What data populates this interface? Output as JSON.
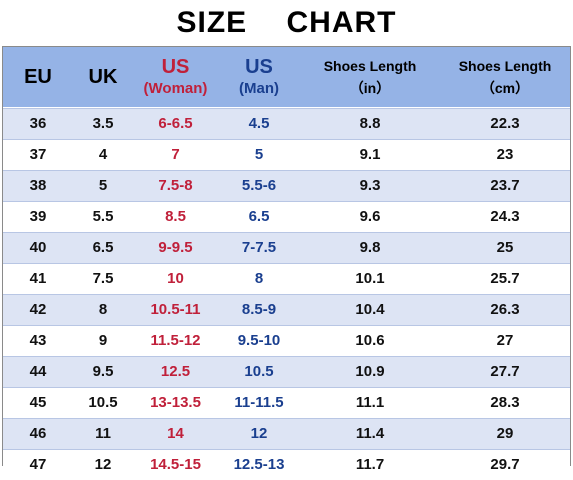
{
  "title": "SIZE CHART",
  "colors": {
    "header_bg": "#95b3e6",
    "stripe": "#dde4f4",
    "woman": "#c0203a",
    "man": "#1a3f8f"
  },
  "headers": {
    "eu": "EU",
    "uk": "UK",
    "us_woman": "US",
    "us_woman_sub": "(Woman)",
    "us_man": "US",
    "us_man_sub": "(Man)",
    "length_in": "Shoes Length",
    "length_in_unit": "（in）",
    "length_cm": "Shoes Length",
    "length_cm_unit": "（cm）"
  },
  "rows": [
    {
      "eu": "36",
      "uk": "3.5",
      "us_woman": "6-6.5",
      "us_man": "4.5",
      "inch": "8.8",
      "cm": "22.3"
    },
    {
      "eu": "37",
      "uk": "4",
      "us_woman": "7",
      "us_man": "5",
      "inch": "9.1",
      "cm": "23"
    },
    {
      "eu": "38",
      "uk": "5",
      "us_woman": "7.5-8",
      "us_man": "5.5-6",
      "inch": "9.3",
      "cm": "23.7"
    },
    {
      "eu": "39",
      "uk": "5.5",
      "us_woman": "8.5",
      "us_man": "6.5",
      "inch": "9.6",
      "cm": "24.3"
    },
    {
      "eu": "40",
      "uk": "6.5",
      "us_woman": "9-9.5",
      "us_man": "7-7.5",
      "inch": "9.8",
      "cm": "25"
    },
    {
      "eu": "41",
      "uk": "7.5",
      "us_woman": "10",
      "us_man": "8",
      "inch": "10.1",
      "cm": "25.7"
    },
    {
      "eu": "42",
      "uk": "8",
      "us_woman": "10.5-11",
      "us_man": "8.5-9",
      "inch": "10.4",
      "cm": "26.3"
    },
    {
      "eu": "43",
      "uk": "9",
      "us_woman": "11.5-12",
      "us_man": "9.5-10",
      "inch": "10.6",
      "cm": "27"
    },
    {
      "eu": "44",
      "uk": "9.5",
      "us_woman": "12.5",
      "us_man": "10.5",
      "inch": "10.9",
      "cm": "27.7"
    },
    {
      "eu": "45",
      "uk": "10.5",
      "us_woman": "13-13.5",
      "us_man": "11-11.5",
      "inch": "11.1",
      "cm": "28.3"
    },
    {
      "eu": "46",
      "uk": "11",
      "us_woman": "14",
      "us_man": "12",
      "inch": "11.4",
      "cm": "29"
    },
    {
      "eu": "47",
      "uk": "12",
      "us_woman": "14.5-15",
      "us_man": "12.5-13",
      "inch": "11.7",
      "cm": "29.7"
    }
  ]
}
